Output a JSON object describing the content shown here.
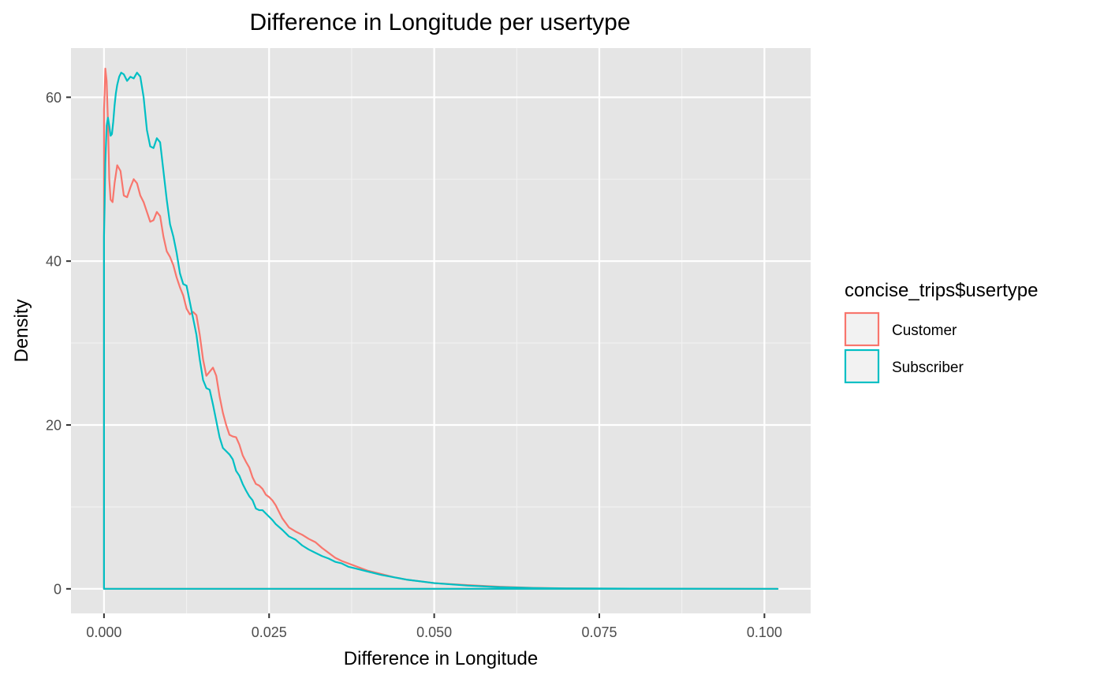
{
  "chart_data": {
    "type": "line",
    "title": "Difference in Longitude per usertype",
    "xlabel": "Difference in Longitude",
    "ylabel": "Density",
    "xlim": [
      -0.005,
      0.107
    ],
    "ylim": [
      -3,
      66
    ],
    "x_ticks": [
      0.0,
      0.025,
      0.05,
      0.075,
      0.1
    ],
    "x_tick_labels": [
      "0.000",
      "0.025",
      "0.050",
      "0.075",
      "0.100"
    ],
    "y_ticks": [
      0,
      20,
      40,
      60
    ],
    "y_tick_labels": [
      "0",
      "20",
      "40",
      "60"
    ],
    "grid": true,
    "legend": {
      "title": "concise_trips$usertype",
      "position": "right",
      "entries": [
        "Customer",
        "Subscriber"
      ]
    },
    "series": [
      {
        "name": "Customer",
        "color": "#f8766d",
        "x": [
          0.0,
          0.0,
          0.0001,
          0.0002,
          0.0004,
          0.0006,
          0.0008,
          0.001,
          0.0013,
          0.0016,
          0.002,
          0.0025,
          0.003,
          0.0035,
          0.004,
          0.0045,
          0.005,
          0.0055,
          0.006,
          0.0065,
          0.007,
          0.0075,
          0.008,
          0.0085,
          0.009,
          0.0095,
          0.01,
          0.0105,
          0.011,
          0.0115,
          0.012,
          0.0125,
          0.013,
          0.0135,
          0.014,
          0.0145,
          0.015,
          0.0155,
          0.016,
          0.0165,
          0.017,
          0.0175,
          0.018,
          0.0185,
          0.019,
          0.0195,
          0.02,
          0.0205,
          0.021,
          0.0215,
          0.022,
          0.0225,
          0.023,
          0.0235,
          0.024,
          0.0245,
          0.025,
          0.0255,
          0.026,
          0.027,
          0.028,
          0.029,
          0.03,
          0.031,
          0.032,
          0.033,
          0.034,
          0.035,
          0.036,
          0.037,
          0.038,
          0.04,
          0.042,
          0.044,
          0.046,
          0.048,
          0.05,
          0.055,
          0.06,
          0.065,
          0.07,
          0.08,
          0.09,
          0.1,
          0.102
        ],
        "values": [
          0.0,
          58.5,
          60.5,
          63.5,
          62.0,
          57.0,
          50.0,
          47.5,
          47.2,
          49.5,
          51.7,
          51.0,
          48.0,
          47.8,
          49.0,
          50.0,
          49.5,
          48.0,
          47.2,
          46.0,
          44.8,
          45.0,
          46.0,
          45.5,
          43.0,
          41.2,
          40.5,
          39.5,
          38.0,
          36.8,
          35.8,
          34.2,
          33.5,
          33.8,
          33.4,
          31.0,
          28.0,
          26.0,
          26.5,
          27.0,
          26.0,
          23.5,
          21.5,
          20.0,
          18.8,
          18.6,
          18.5,
          17.6,
          16.3,
          15.5,
          14.8,
          13.6,
          12.8,
          12.6,
          12.2,
          11.5,
          11.2,
          10.8,
          10.2,
          8.6,
          7.5,
          7.0,
          6.6,
          6.1,
          5.7,
          5.0,
          4.4,
          3.8,
          3.4,
          3.1,
          2.8,
          2.2,
          1.8,
          1.4,
          1.1,
          0.9,
          0.7,
          0.45,
          0.25,
          0.12,
          0.06,
          0.02,
          0.01,
          0.0,
          0.0
        ]
      },
      {
        "name": "Subscriber",
        "color": "#00bfc4",
        "x": [
          0.0,
          0.0,
          0.0001,
          0.0002,
          0.0004,
          0.0006,
          0.0008,
          0.001,
          0.0012,
          0.0014,
          0.0016,
          0.0018,
          0.002,
          0.0023,
          0.0026,
          0.003,
          0.0035,
          0.004,
          0.0045,
          0.005,
          0.0055,
          0.006,
          0.0065,
          0.007,
          0.0075,
          0.008,
          0.0085,
          0.009,
          0.0095,
          0.01,
          0.0105,
          0.011,
          0.0115,
          0.012,
          0.0125,
          0.013,
          0.0135,
          0.014,
          0.0145,
          0.015,
          0.0155,
          0.016,
          0.0165,
          0.017,
          0.0175,
          0.018,
          0.0185,
          0.019,
          0.0195,
          0.02,
          0.0205,
          0.021,
          0.0215,
          0.022,
          0.0225,
          0.023,
          0.0235,
          0.024,
          0.0245,
          0.025,
          0.0255,
          0.026,
          0.027,
          0.028,
          0.029,
          0.03,
          0.031,
          0.032,
          0.033,
          0.034,
          0.035,
          0.036,
          0.037,
          0.038,
          0.04,
          0.042,
          0.044,
          0.046,
          0.048,
          0.05,
          0.055,
          0.06,
          0.065,
          0.07,
          0.08,
          0.09,
          0.1,
          0.102
        ],
        "values": [
          0.0,
          43.0,
          47.0,
          52.0,
          56.5,
          57.5,
          56.5,
          55.3,
          55.5,
          57.0,
          59.0,
          60.5,
          61.5,
          62.5,
          63.0,
          62.8,
          62.0,
          62.5,
          62.3,
          63.0,
          62.5,
          60.0,
          56.0,
          54.0,
          53.8,
          55.0,
          54.5,
          51.0,
          47.5,
          44.5,
          43.0,
          41.0,
          38.5,
          37.2,
          37.0,
          35.0,
          33.0,
          31.0,
          28.0,
          25.5,
          24.5,
          24.3,
          22.5,
          20.5,
          18.5,
          17.2,
          16.8,
          16.4,
          15.8,
          14.4,
          13.8,
          12.8,
          12.0,
          11.3,
          10.8,
          9.8,
          9.6,
          9.6,
          9.2,
          8.8,
          8.4,
          7.9,
          7.2,
          6.4,
          6.0,
          5.3,
          4.8,
          4.4,
          4.0,
          3.7,
          3.3,
          3.1,
          2.7,
          2.5,
          2.1,
          1.7,
          1.4,
          1.1,
          0.9,
          0.7,
          0.4,
          0.2,
          0.1,
          0.05,
          0.02,
          0.01,
          0.0,
          0.0
        ]
      }
    ]
  }
}
